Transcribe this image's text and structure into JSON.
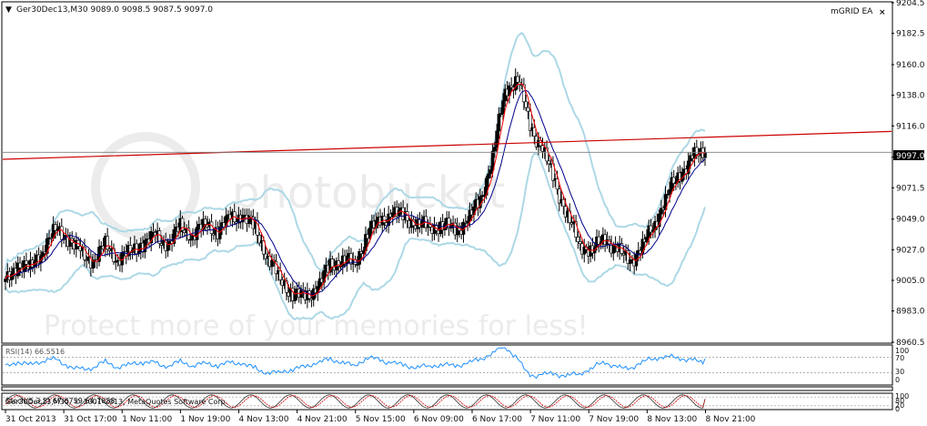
{
  "window": {
    "header": "Ger30Dec13,M30  9089.0 9098.5 9087.5 9097.0",
    "ea_label": "mGRID EA",
    "close_glyph": "×",
    "menu_glyph": "▼"
  },
  "watermark": {
    "title": "photobucket",
    "sub": "Protect more of your memories for less!"
  },
  "rsi_panel": {
    "label": "RSI(14) 66.5516",
    "axis_labels": [
      "100",
      "70",
      "30",
      "0"
    ]
  },
  "stoch_panel": {
    "label": "Stoch(5,3,3) 67.6759 64.7638",
    "axis_labels": [
      "100",
      "80",
      "20",
      "0"
    ]
  },
  "copyright": "Ger30Dec13,M30, © 2001-2013, MetaQuotes Software Corp.",
  "chart_data": {
    "type": "candlestick",
    "symbol": "Ger30Dec13",
    "timeframe": "M30",
    "price_axis": {
      "ticks": [
        "9204.5",
        "9182.5",
        "9160.0",
        "9138.0",
        "9116.0",
        "9093.5",
        "9071.5",
        "9049.0",
        "9027.0",
        "9005.0",
        "8983.0",
        "8960.5"
      ],
      "range": [
        8960.5,
        9204.5
      ]
    },
    "current_price": "9097.0",
    "time_axis": [
      "31 Oct 2013",
      "31 Oct 17:00",
      "1 Nov 11:00",
      "1 Nov 19:00",
      "4 Nov 13:00",
      "4 Nov 21:00",
      "5 Nov 15:00",
      "6 Nov 09:00",
      "6 Nov 17:00",
      "7 Nov 11:00",
      "7 Nov 19:00",
      "8 Nov 13:00",
      "8 Nov 21:00"
    ],
    "close_path": [
      9003,
      9017,
      9013,
      9028,
      9041,
      9036,
      9024,
      9019,
      9030,
      9021,
      9025,
      9032,
      9036,
      9031,
      9043,
      9038,
      9045,
      9041,
      9049,
      9052,
      9042,
      9022,
      9005,
      8996,
      8992,
      9001,
      9015,
      9021,
      9016,
      9040,
      9047,
      9054,
      9050,
      9046,
      9043,
      9045,
      9041,
      9048,
      9062,
      9094,
      9142,
      9150,
      9117,
      9098,
      9076,
      9050,
      9031,
      9026,
      9036,
      9026,
      9019,
      9029,
      9047,
      9067,
      9082,
      9093,
      9097
    ],
    "indicators": [
      "Bollinger Bands",
      "Moving Average (red)",
      "Moving Average (navy)"
    ],
    "trendline": {
      "start": 9092,
      "end": 9112
    },
    "hline": 9097.0,
    "rsi_value": 66.5516,
    "rsi_levels": [
      70,
      30
    ],
    "stoch": [
      67.6759,
      64.7638
    ],
    "stoch_levels": [
      80,
      20
    ],
    "colors": {
      "bull": "#000000",
      "bear": "#ffffff",
      "bands": "#add8e6",
      "ma_fast": "#ff0000",
      "ma_slow": "#00008b",
      "rsi": "#1e90ff",
      "trendline": "#cc0000",
      "hline": "#808080"
    }
  }
}
